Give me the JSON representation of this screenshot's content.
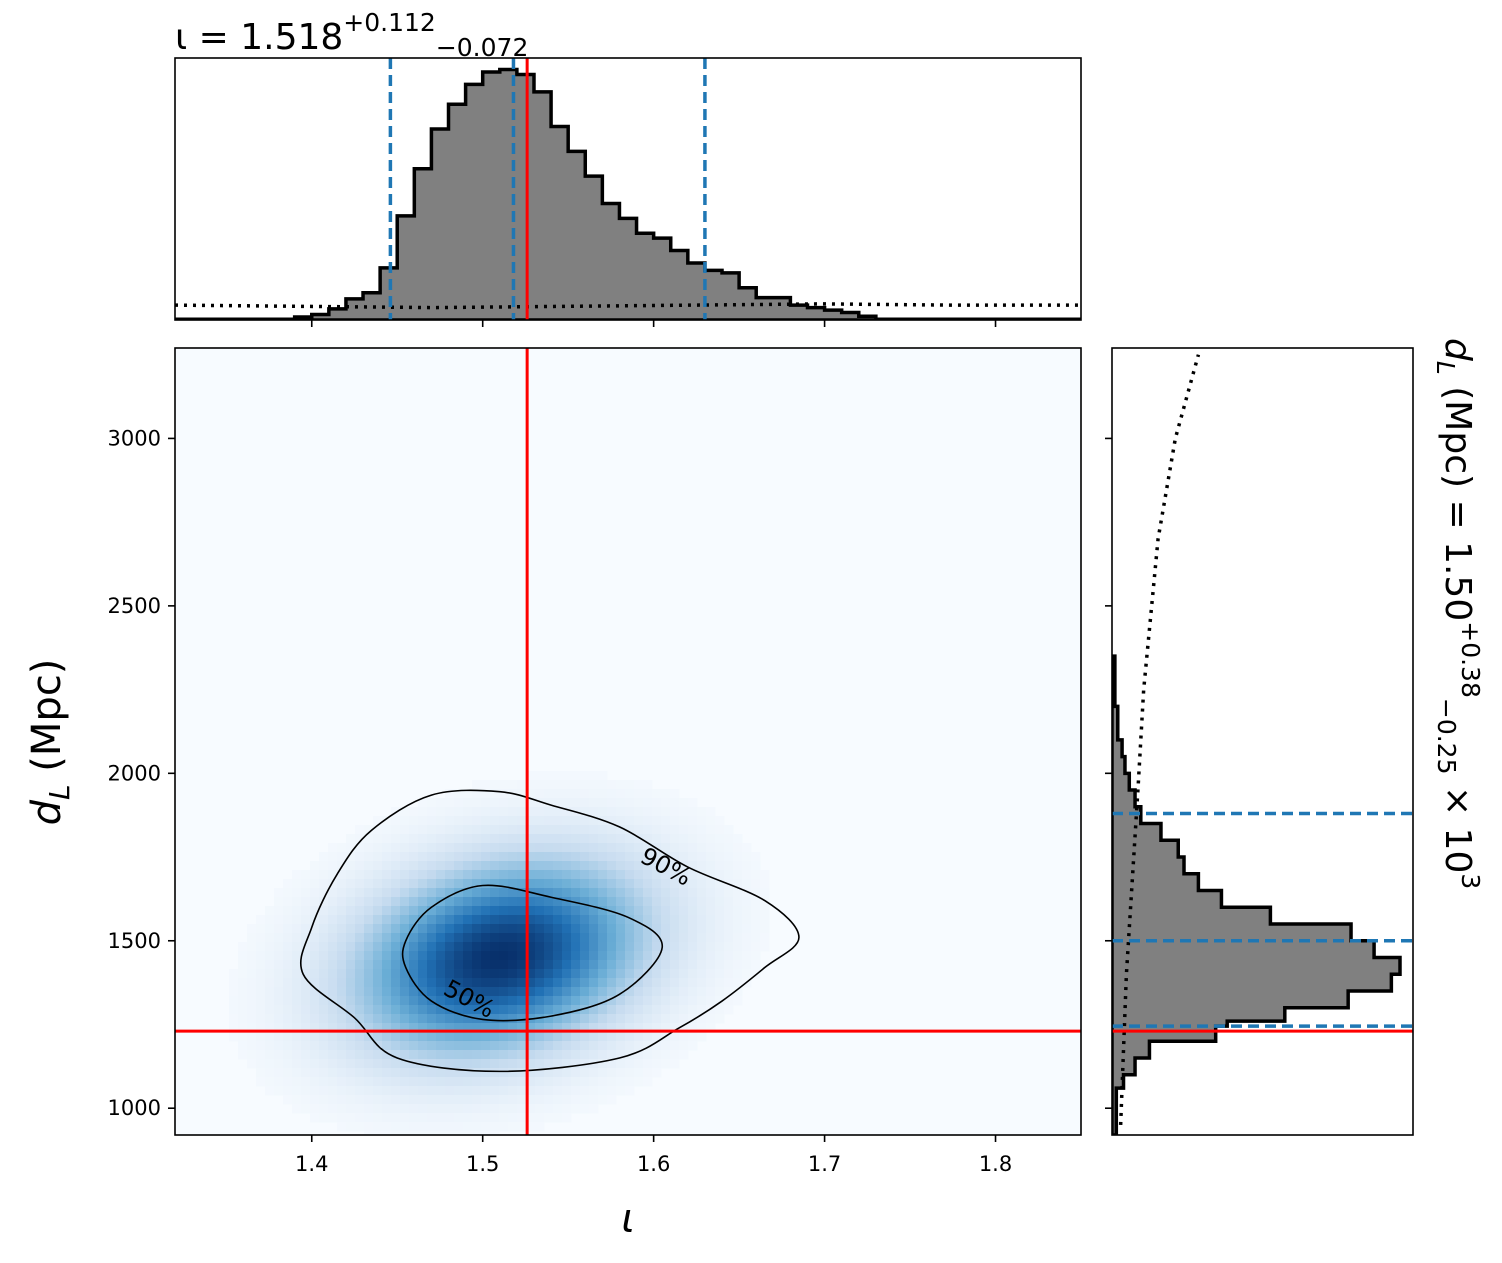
{
  "chart_data": {
    "type": "corner-plot",
    "x_axis": {
      "label": "ι",
      "lim": [
        1.32,
        1.85
      ],
      "ticks": [
        1.4,
        1.5,
        1.6,
        1.7,
        1.8
      ],
      "tick_labels": [
        "1.4",
        "1.5",
        "1.6",
        "1.7",
        "1.8"
      ]
    },
    "y_axis": {
      "label": "d_L (Mpc)",
      "label_main": "d",
      "label_sub": "L",
      "label_rest": " (Mpc)",
      "lim": [
        920,
        3270
      ],
      "ticks": [
        1000,
        1500,
        2000,
        2500,
        3000
      ],
      "tick_labels": [
        "1000",
        "1500",
        "2000",
        "2500",
        "3000"
      ]
    },
    "iota_summary": {
      "title_prefix": "ι = 1.518",
      "median": 1.518,
      "plus": "+0.112",
      "minus": "−0.072",
      "quantiles": [
        1.446,
        1.518,
        1.63
      ]
    },
    "dl_summary": {
      "title_prefix": "d",
      "title_sub": "L",
      "title_mid": " (Mpc) = 1.50",
      "plus": "+0.38",
      "minus": "−0.25",
      "title_suffix": " × 10",
      "exponent": "3",
      "median": 1500,
      "quantiles": [
        1245,
        1500,
        1880
      ]
    },
    "truth": {
      "iota": 1.526,
      "dL": 1230,
      "color": "#ff0000"
    },
    "iota_hist": {
      "edges": [
        1.32,
        1.39,
        1.4,
        1.41,
        1.42,
        1.43,
        1.44,
        1.45,
        1.46,
        1.47,
        1.48,
        1.49,
        1.5,
        1.51,
        1.52,
        1.53,
        1.54,
        1.55,
        1.56,
        1.57,
        1.58,
        1.59,
        1.6,
        1.61,
        1.62,
        1.63,
        1.64,
        1.65,
        1.66,
        1.67,
        1.68,
        1.69,
        1.7,
        1.71,
        1.72,
        1.73,
        1.85
      ],
      "heights": [
        0.003,
        0.012,
        0.022,
        0.045,
        0.085,
        0.11,
        0.21,
        0.42,
        0.61,
        0.77,
        0.87,
        0.95,
        1.0,
        1.01,
        0.99,
        0.92,
        0.78,
        0.68,
        0.58,
        0.47,
        0.41,
        0.35,
        0.33,
        0.28,
        0.23,
        0.2,
        0.19,
        0.13,
        0.09,
        0.09,
        0.06,
        0.05,
        0.04,
        0.03,
        0.015,
        0.003
      ],
      "prior": [
        0.06,
        0.055,
        0.05,
        0.055,
        0.06,
        0.065,
        0.06,
        0.06
      ]
    },
    "dl_hist": {
      "edges": [
        920,
        1060,
        1100,
        1150,
        1200,
        1245,
        1260,
        1300,
        1350,
        1400,
        1450,
        1500,
        1550,
        1600,
        1650,
        1700,
        1750,
        1800,
        1850,
        1900,
        1950,
        2000,
        2050,
        2100,
        2200,
        2350
      ],
      "values": [
        0.015,
        0.04,
        0.08,
        0.13,
        0.36,
        0.4,
        0.6,
        0.82,
        0.97,
        1.0,
        0.91,
        0.83,
        0.55,
        0.38,
        0.3,
        0.25,
        0.23,
        0.17,
        0.1,
        0.08,
        0.06,
        0.045,
        0.035,
        0.02,
        0.01
      ],
      "prior_x": [
        0.03,
        0.05,
        0.09,
        0.11,
        0.16,
        0.22,
        0.3
      ],
      "prior_y": [
        950,
        1400,
        1950,
        2250,
        2700,
        3000,
        3250
      ]
    },
    "density": {
      "center_iota": 1.51,
      "center_dL": 1450,
      "sigma_iota": 0.055,
      "sigma_dL": 190
    },
    "contours": [
      {
        "label": "90%",
        "points": [
          [
            1.4,
            1540
          ],
          [
            1.415,
            1700
          ],
          [
            1.435,
            1830
          ],
          [
            1.47,
            1935
          ],
          [
            1.51,
            1945
          ],
          [
            1.54,
            1905
          ],
          [
            1.58,
            1840
          ],
          [
            1.62,
            1720
          ],
          [
            1.665,
            1620
          ],
          [
            1.685,
            1510
          ],
          [
            1.665,
            1420
          ],
          [
            1.64,
            1320
          ],
          [
            1.615,
            1240
          ],
          [
            1.58,
            1150
          ],
          [
            1.51,
            1110
          ],
          [
            1.45,
            1150
          ],
          [
            1.425,
            1270
          ],
          [
            1.395,
            1400
          ]
        ]
      },
      {
        "label": "50%",
        "points": [
          [
            1.455,
            1500
          ],
          [
            1.47,
            1600
          ],
          [
            1.5,
            1665
          ],
          [
            1.54,
            1630
          ],
          [
            1.585,
            1570
          ],
          [
            1.605,
            1480
          ],
          [
            1.58,
            1340
          ],
          [
            1.54,
            1275
          ],
          [
            1.5,
            1265
          ],
          [
            1.47,
            1320
          ],
          [
            1.455,
            1420
          ]
        ]
      }
    ],
    "colors": {
      "hist_fill": "#808080",
      "hist_edge": "#000000",
      "quantile": "#1f77b4",
      "contour": "#000000"
    }
  }
}
